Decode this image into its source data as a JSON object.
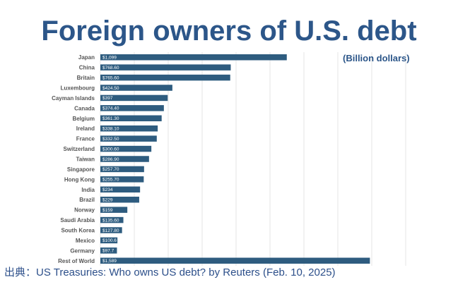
{
  "title": "Foreign owners of U.S. debt",
  "unit_label": "(Billion dollars)",
  "source": "出典：US Treasuries: Who owns US debt? by Reuters (Feb. 10, 2025)",
  "colors": {
    "bar": "#2e5c7f",
    "title": "#2c5689"
  },
  "chart_data": {
    "type": "bar",
    "orientation": "horizontal",
    "title": "Foreign owners of U.S. debt",
    "xlabel": "",
    "ylabel": "",
    "unit": "(Billion dollars)",
    "xlim": [
      0,
      1800
    ],
    "grid": true,
    "categories": [
      "Japan",
      "China",
      "Britain",
      "Luxembourg",
      "Cayman Islands",
      "Canada",
      "Belgium",
      "Ireland",
      "France",
      "Switzerland",
      "Taiwan",
      "Singapore",
      "Hong Kong",
      "India",
      "Brazil",
      "Norway",
      "Saudi Arabia",
      "South Korea",
      "Mexico",
      "Germany",
      "Rest of World"
    ],
    "values": [
      1099,
      768.6,
      765.6,
      424.5,
      397,
      374.4,
      361.3,
      338.1,
      332.5,
      300.6,
      286.9,
      257.7,
      255.7,
      234,
      229,
      159,
      135.6,
      127.8,
      100.6,
      97.7,
      1589
    ],
    "data_labels": [
      "$1,099",
      "$768.60",
      "$765.60",
      "$424.50",
      "$397",
      "$374.40",
      "$361.30",
      "$338.10",
      "$332.50",
      "$300.60",
      "$286.90",
      "$257.70",
      "$255.70",
      "$234",
      "$229",
      "$159",
      "$135.60",
      "$127.80",
      "$100.6",
      "$97.7",
      "$1,589"
    ]
  }
}
